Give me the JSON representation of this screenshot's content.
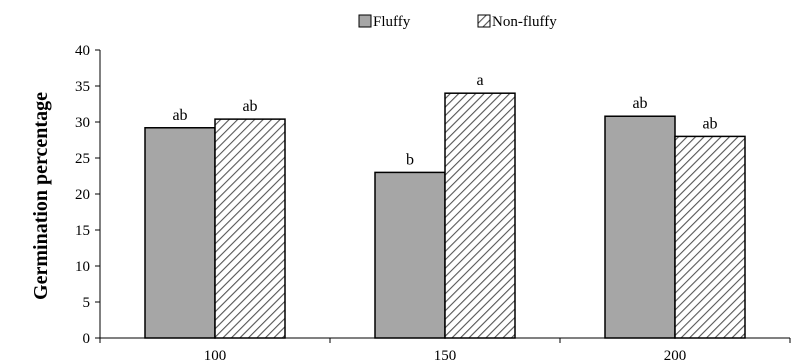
{
  "chart_data": {
    "type": "bar",
    "title": "",
    "xlabel": "",
    "ylabel": "Germination percentage",
    "categories": [
      "100",
      "150",
      "200"
    ],
    "series": [
      {
        "name": "Fluffy",
        "values": [
          29.2,
          23.0,
          30.8
        ],
        "fill": "#a6a6a6",
        "pattern": "solid"
      },
      {
        "name": "Non-fluffy",
        "values": [
          30.4,
          34.0,
          28.0
        ],
        "fill": "#ffffff",
        "pattern": "diagonal-hatch"
      }
    ],
    "significance_labels": [
      [
        "ab",
        "ab"
      ],
      [
        "b",
        "a"
      ],
      [
        "ab",
        "ab"
      ]
    ],
    "ylim": [
      0,
      40
    ],
    "yticks": [
      0,
      5,
      10,
      15,
      20,
      25,
      30,
      35,
      40
    ],
    "grid": false,
    "legend_position": "top-center",
    "colors": {
      "axis": "#000000",
      "fluffy": "#a6a6a6",
      "hatch": "#555555"
    }
  }
}
